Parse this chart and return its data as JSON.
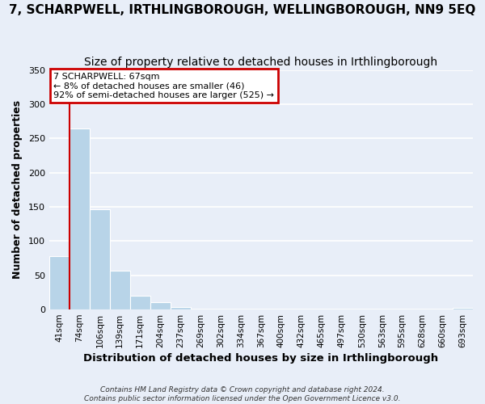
{
  "title": "7, SCHARPWELL, IRTHLINGBOROUGH, WELLINGBOROUGH, NN9 5EQ",
  "subtitle": "Size of property relative to detached houses in Irthlingborough",
  "xlabel": "Distribution of detached houses by size in Irthlingborough",
  "ylabel": "Number of detached properties",
  "categories": [
    "41sqm",
    "74sqm",
    "106sqm",
    "139sqm",
    "171sqm",
    "204sqm",
    "237sqm",
    "269sqm",
    "302sqm",
    "334sqm",
    "367sqm",
    "400sqm",
    "432sqm",
    "465sqm",
    "497sqm",
    "530sqm",
    "563sqm",
    "595sqm",
    "628sqm",
    "660sqm",
    "693sqm"
  ],
  "values": [
    78,
    264,
    147,
    57,
    20,
    11,
    4,
    0,
    0,
    0,
    0,
    0,
    0,
    0,
    0,
    0,
    0,
    0,
    0,
    0,
    2
  ],
  "bar_color": "#b8d4e8",
  "bar_edge_color": "#a0c0d8",
  "ylim": [
    0,
    350
  ],
  "yticks": [
    0,
    50,
    100,
    150,
    200,
    250,
    300,
    350
  ],
  "annotation_line1": "7 SCHARPWELL: 67sqm",
  "annotation_line2": "← 8% of detached houses are smaller (46)",
  "annotation_line3": "92% of semi-detached houses are larger (525) →",
  "vline_color": "#cc0000",
  "footnote1": "Contains HM Land Registry data © Crown copyright and database right 2024.",
  "footnote2": "Contains public sector information licensed under the Open Government Licence v3.0.",
  "background_color": "#e8eef8",
  "plot_bg_color": "#e8eef8",
  "grid_color": "#ffffff",
  "box_color": "#cc0000",
  "title_fontsize": 11,
  "subtitle_fontsize": 10
}
